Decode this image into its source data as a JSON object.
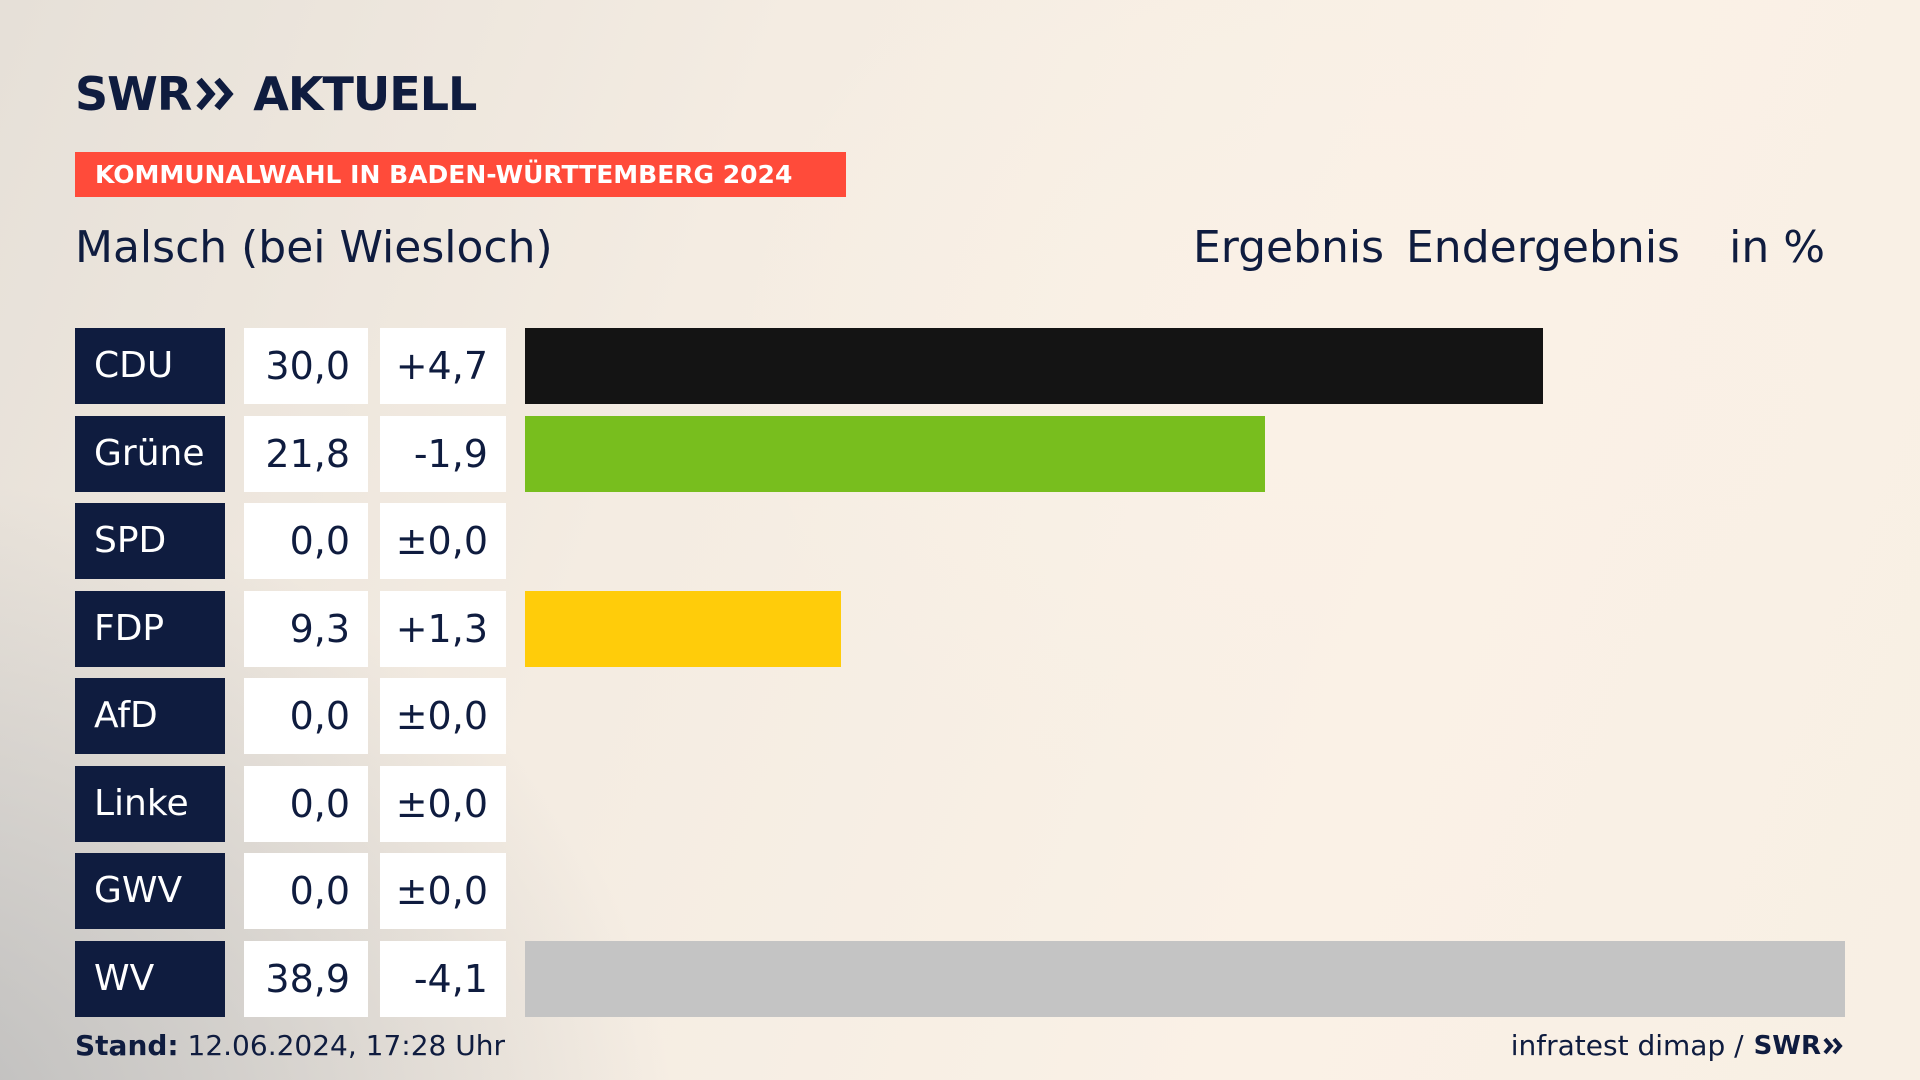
{
  "brand": {
    "swr": "SWR",
    "aktuell": "AKTUELL"
  },
  "banner": "KOMMUNALWAHL IN BADEN-WÜRTTEMBERG 2024",
  "location": "Malsch (bei Wiesloch)",
  "headers": {
    "ergebnis": "Ergebnis",
    "endergebnis": "Endergebnis",
    "unit": "in %"
  },
  "footer": {
    "stand_label": "Stand:",
    "stand_value": "12.06.2024, 17:28 Uhr",
    "source": "infratest dimap /",
    "source_brand": "SWR"
  },
  "colors": {
    "navy": "#0f1c3f",
    "banner": "#ff4b3a"
  },
  "chart_data": {
    "type": "bar",
    "orientation": "horizontal",
    "xlim": [
      0,
      38.9
    ],
    "categories": [
      "CDU",
      "Grüne",
      "SPD",
      "FDP",
      "AfD",
      "Linke",
      "GWV",
      "WV"
    ],
    "values": [
      30.0,
      21.8,
      0.0,
      9.3,
      0.0,
      0.0,
      0.0,
      38.9
    ],
    "value_labels": [
      "30,0",
      "21,8",
      "0,0",
      "9,3",
      "0,0",
      "0,0",
      "0,0",
      "38,9"
    ],
    "change_labels": [
      "+4,7",
      "-1,9",
      "±0,0",
      "+1,3",
      "±0,0",
      "±0,0",
      "±0,0",
      "-4,1"
    ],
    "colors": [
      "#141414",
      "#78be1e",
      "#e3000f",
      "#ffcc0a",
      "#009ee0",
      "#be3075",
      "#8c8c8c",
      "#c4c4c4"
    ]
  }
}
